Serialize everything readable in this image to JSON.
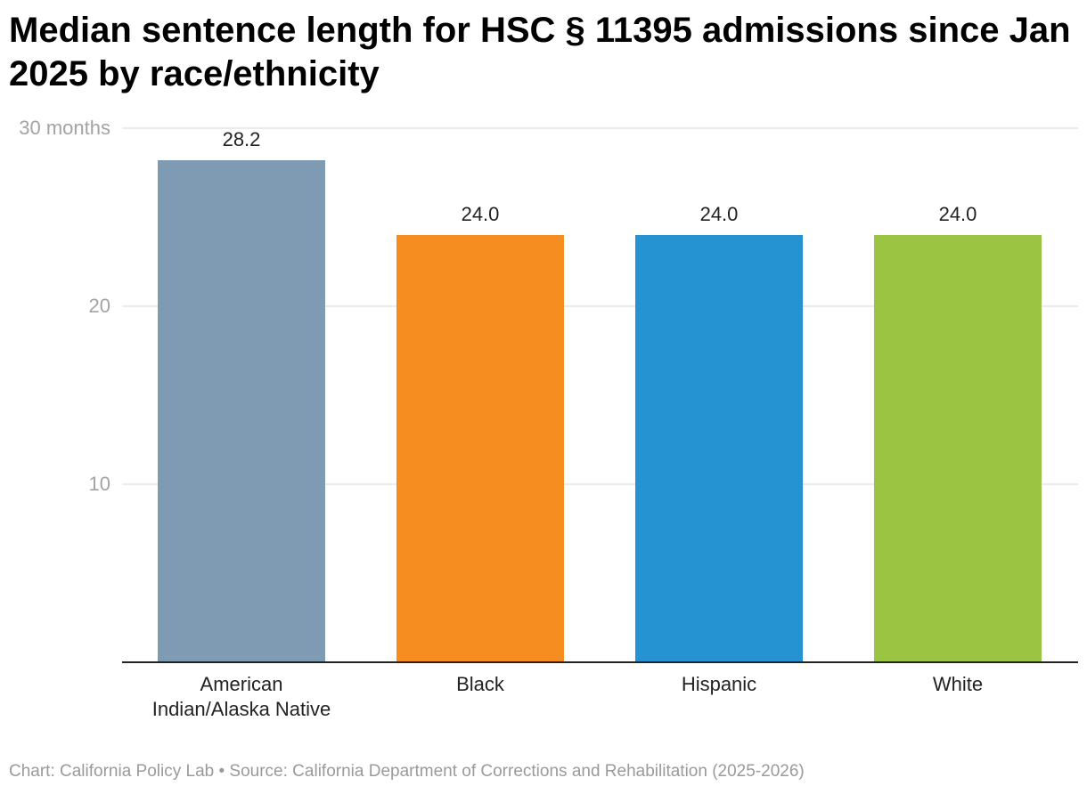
{
  "chart_data": {
    "type": "bar",
    "title": "Median sentence length for HSC § 11395 admissions since Jan 2025 by race/ethnicity",
    "categories": [
      "American Indian/Alaska Native",
      "Black",
      "Hispanic",
      "White"
    ],
    "category_lines": [
      [
        "American",
        "Indian/Alaska Native"
      ],
      [
        "Black"
      ],
      [
        "Hispanic"
      ],
      [
        "White"
      ]
    ],
    "values": [
      28.2,
      24.0,
      24.0,
      24.0
    ],
    "value_labels": [
      "28.2",
      "24.0",
      "24.0",
      "24.0"
    ],
    "colors": [
      "#7f9bb3",
      "#f58d20",
      "#2592d1",
      "#9bc443"
    ],
    "ylim": [
      0,
      30
    ],
    "yticks": [
      10,
      20,
      30
    ],
    "ytick_labels": [
      "10",
      "20",
      "30 months"
    ],
    "grid": true,
    "legend": "none"
  },
  "footer": {
    "text": "Chart: California Policy Lab • Source: California Department of Corrections and Rehabilitation (2025-2026)"
  }
}
